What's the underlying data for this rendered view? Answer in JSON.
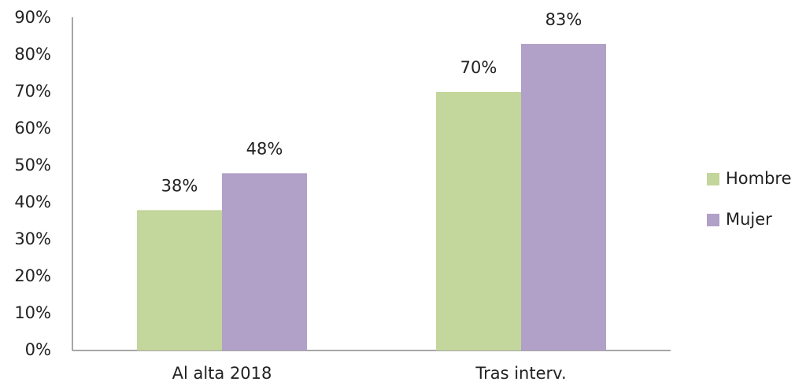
{
  "chart_data": {
    "type": "bar",
    "categories": [
      "Al alta 2018",
      "Tras interv."
    ],
    "series": [
      {
        "name": "Hombre",
        "color": "#c3d69b",
        "values": [
          38,
          70
        ],
        "value_labels": [
          "38%",
          "70%"
        ]
      },
      {
        "name": "Mujer",
        "color": "#b1a0c7",
        "values": [
          48,
          83
        ],
        "value_labels": [
          "48%",
          "83%"
        ]
      }
    ],
    "ylim": [
      0,
      90
    ],
    "yticks": [
      {
        "value": 0,
        "label": "0%"
      },
      {
        "value": 10,
        "label": "10%"
      },
      {
        "value": 20,
        "label": "20%"
      },
      {
        "value": 30,
        "label": "30%"
      },
      {
        "value": 40,
        "label": "40%"
      },
      {
        "value": 50,
        "label": "50%"
      },
      {
        "value": 60,
        "label": "60%"
      },
      {
        "value": 70,
        "label": "70%"
      },
      {
        "value": 80,
        "label": "80%"
      },
      {
        "value": 90,
        "label": "90%"
      }
    ],
    "grid": false,
    "legend": "right"
  }
}
